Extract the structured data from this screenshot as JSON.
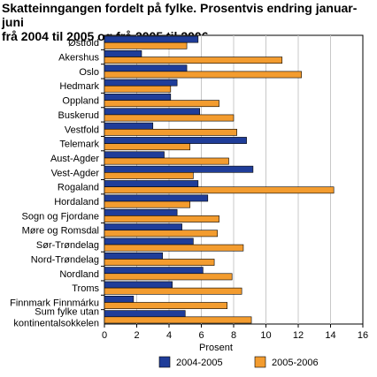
{
  "chart_data": {
    "type": "bar",
    "orientation": "horizontal",
    "title_lines": [
      "Skatteinngangen fordelt på fylke. Prosentvis endring januar-juni",
      "frå 2004 til 2005 og frå 2005 til 2006"
    ],
    "xlabel": "Prosent",
    "ylabel": "",
    "xlim": [
      0,
      16
    ],
    "xticks": [
      "0",
      "2",
      "4",
      "6",
      "8",
      "10",
      "12",
      "14",
      "16"
    ],
    "grid": "vertical",
    "legend_position": "bottom",
    "categories": [
      [
        "Østfold"
      ],
      [
        "Akershus"
      ],
      [
        "Oslo"
      ],
      [
        "Hedmark"
      ],
      [
        "Oppland"
      ],
      [
        "Buskerud"
      ],
      [
        "Vestfold"
      ],
      [
        "Telemark"
      ],
      [
        "Aust-Agder"
      ],
      [
        "Vest-Agder"
      ],
      [
        "Rogaland"
      ],
      [
        "Hordaland"
      ],
      [
        "Sogn og Fjordane"
      ],
      [
        "Møre og Romsdal"
      ],
      [
        "Sør-Trøndelag"
      ],
      [
        "Nord-Trøndelag"
      ],
      [
        "Nordland"
      ],
      [
        "Troms"
      ],
      [
        "Finnmark Finnmárku"
      ],
      [
        "Sum fylke utan",
        "kontinentalsokkelen"
      ]
    ],
    "series": [
      {
        "name": "2004-2005",
        "color": "#1f3d99",
        "values": [
          5.8,
          2.3,
          5.1,
          4.5,
          4.1,
          5.9,
          3.0,
          8.8,
          3.7,
          9.2,
          5.8,
          6.4,
          4.5,
          4.8,
          5.5,
          3.6,
          6.1,
          4.2,
          1.8,
          5.0
        ]
      },
      {
        "name": "2005-2006",
        "color": "#f39c2f",
        "values": [
          5.1,
          11.0,
          12.2,
          4.1,
          7.1,
          8.0,
          8.2,
          5.3,
          7.7,
          5.5,
          14.2,
          5.3,
          7.1,
          7.0,
          8.6,
          6.8,
          7.9,
          8.5,
          7.6,
          9.1
        ]
      }
    ]
  }
}
